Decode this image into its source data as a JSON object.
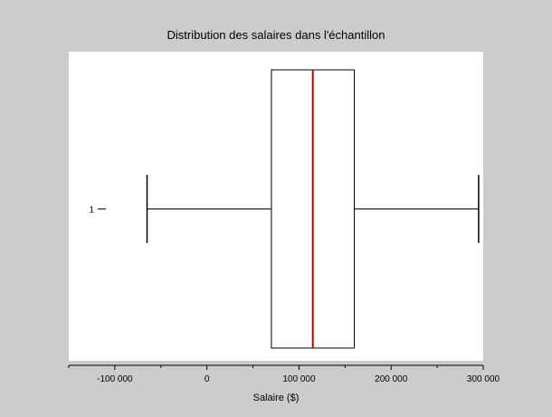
{
  "chart_data": {
    "type": "boxplot",
    "title": "Distribution des salaires dans l'échantillon",
    "xlabel": "Salaire ($)",
    "ylabel": "",
    "xlim": [
      -150000,
      300000
    ],
    "orientation": "horizontal",
    "grid": false,
    "x_ticks": [
      -100000,
      0,
      100000,
      200000,
      300000
    ],
    "x_tick_labels": [
      "-100 000",
      "0",
      "100 000",
      "200 000",
      "300 000"
    ],
    "categories": [
      "1"
    ],
    "series": [
      {
        "whisker_low": -65000,
        "q1": 70000,
        "median": 115000,
        "q3": 160000,
        "whisker_high": 295000
      }
    ],
    "colors": {
      "background": "#cccccc",
      "plot_area": "#ffffff",
      "box": "#000000",
      "median": "#cc0000"
    }
  }
}
